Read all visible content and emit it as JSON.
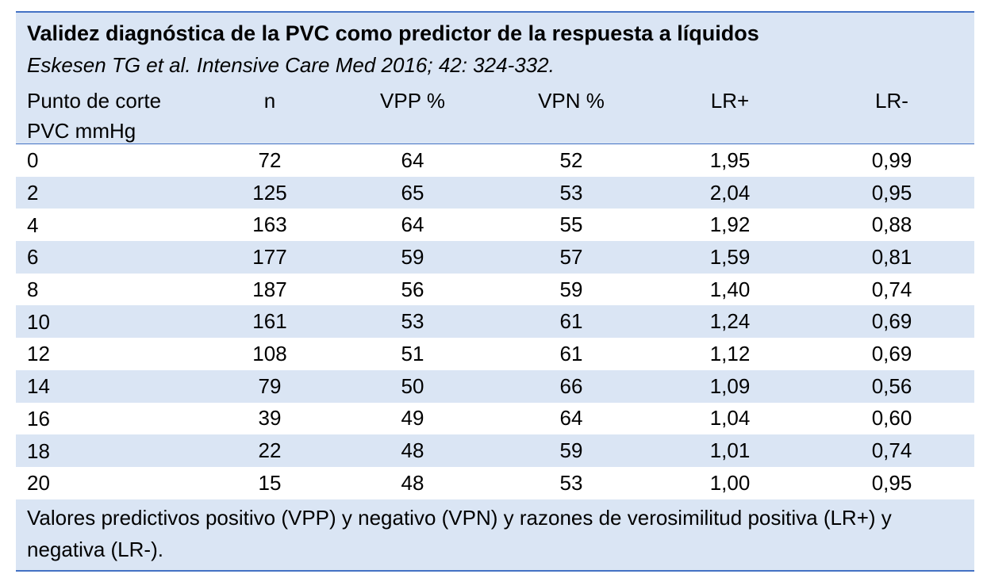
{
  "title": "Validez diagnóstica de la PVC como predictor de la respuesta a líquidos",
  "subtitle": "Eskesen TG et al. Intensive Care Med 2016; 42: 324-332.",
  "columns": [
    "Punto de corte PVC mmHg",
    "n",
    "VPP %",
    "VPN %",
    "LR+",
    "LR-"
  ],
  "rows": [
    [
      "0",
      "72",
      "64",
      "52",
      "1,95",
      "0,99"
    ],
    [
      "2",
      "125",
      "65",
      "53",
      "2,04",
      "0,95"
    ],
    [
      "4",
      "163",
      "64",
      "55",
      "1,92",
      "0,88"
    ],
    [
      "6",
      "177",
      "59",
      "57",
      "1,59",
      "0,81"
    ],
    [
      "8",
      "187",
      "56",
      "59",
      "1,40",
      "0,74"
    ],
    [
      "10",
      "161",
      "53",
      "61",
      "1,24",
      "0,69"
    ],
    [
      "12",
      "108",
      "51",
      "61",
      "1,12",
      "0,69"
    ],
    [
      "14",
      "79",
      "50",
      "66",
      "1,09",
      "0,56"
    ],
    [
      "16",
      "39",
      "49",
      "64",
      "1,04",
      "0,60"
    ],
    [
      "18",
      "22",
      "48",
      "59",
      "1,01",
      "0,74"
    ],
    [
      "20",
      "15",
      "48",
      "53",
      "1,00",
      "0,95"
    ]
  ],
  "footnote": "Valores predictivos positivo (VPP) y negativo (VPN) y razones de verosimilitud positiva (LR+) y negativa (LR-).",
  "colors": {
    "band": "#dae5f4",
    "rule": "#4472c4"
  }
}
